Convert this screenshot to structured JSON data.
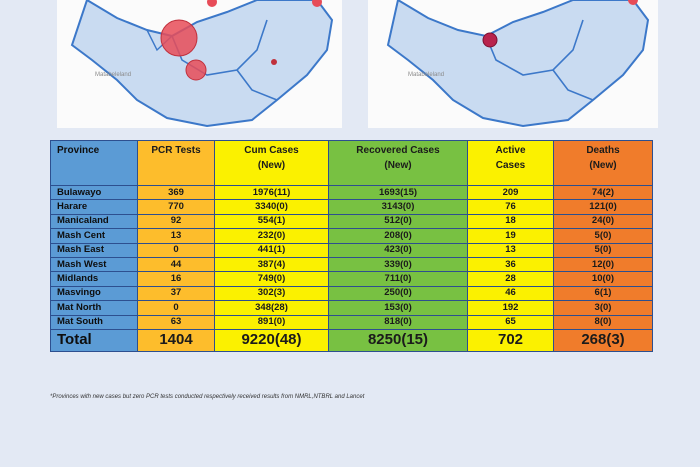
{
  "maps": {
    "left_caption": "Matabeleland",
    "right_caption": "Matabeleland"
  },
  "table": {
    "headers": [
      {
        "line1": "Province",
        "line2": ""
      },
      {
        "line1": "PCR Tests",
        "line2": ""
      },
      {
        "line1": "Cum Cases",
        "line2": "(New)"
      },
      {
        "line1": "Recovered Cases",
        "line2": "(New)"
      },
      {
        "line1": "Active",
        "line2": "Cases"
      },
      {
        "line1": "Deaths",
        "line2": "(New)"
      }
    ],
    "rows": [
      [
        "Bulawayo",
        "369",
        "1976(11)",
        "1693(15)",
        "209",
        "74(2)"
      ],
      [
        "Harare",
        "770",
        "3340(0)",
        "3143(0)",
        "76",
        "121(0)"
      ],
      [
        "Manicaland",
        "92",
        "554(1)",
        "512(0)",
        "18",
        "24(0)"
      ],
      [
        "Mash Cent",
        "13",
        "232(0)",
        "208(0)",
        "19",
        "5(0)"
      ],
      [
        "Mash East",
        "0",
        "441(1)",
        "423(0)",
        "13",
        "5(0)"
      ],
      [
        "Mash West",
        "44",
        "387(4)",
        "339(0)",
        "36",
        "12(0)"
      ],
      [
        "Midlands",
        "16",
        "749(0)",
        "711(0)",
        "28",
        "10(0)"
      ],
      [
        "Masvingo",
        "37",
        "302(3)",
        "250(0)",
        "46",
        "6(1)"
      ],
      [
        "Mat North",
        "0",
        "348(28)",
        "153(0)",
        "192",
        "3(0)"
      ],
      [
        "Mat South",
        "63",
        "891(0)",
        "818(0)",
        "65",
        "8(0)"
      ]
    ],
    "total": [
      "Total",
      "1404",
      "9220(48)",
      "8250(15)",
      "702",
      "268(3)"
    ]
  },
  "footnote": "*Provinces with new cases but zero PCR tests conducted respectively received results from NMRL,NTBRL and Lancet",
  "colors": {
    "province": "#5b9bd5",
    "pcr": "#fdbd2c",
    "cum": "#fbf100",
    "recovered": "#78c142",
    "active": "#fbf100",
    "deaths": "#f07c2b"
  }
}
